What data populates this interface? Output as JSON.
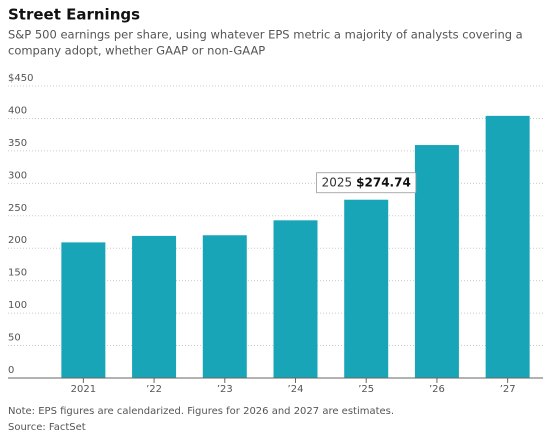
{
  "chart_data": {
    "type": "bar",
    "title": "Street Earnings",
    "subtitle_lines": [
      "S&P 500 earnings per share, using whatever EPS metric a majority of analysts covering a",
      "company adopt, whether GAAP or non-GAAP"
    ],
    "categories": [
      "2021",
      "’22",
      "’23",
      "’24",
      "’25",
      "’26",
      "’27"
    ],
    "values": [
      209,
      219,
      220,
      243,
      274.74,
      359,
      404
    ],
    "value_labels": [
      null,
      null,
      null,
      null,
      "$274.74",
      null,
      null
    ],
    "highlight_label": "2025",
    "color": "#19a5b8",
    "ylim": [
      0,
      450
    ],
    "yticks": [
      0,
      50,
      100,
      150,
      200,
      250,
      300,
      350,
      400,
      {
        "value": 450,
        "label": "$450"
      }
    ],
    "grid": true,
    "note": "Note: EPS figures are calendarized. Figures for 2026 and 2027 are estimates.",
    "source": "Source: FactSet"
  }
}
